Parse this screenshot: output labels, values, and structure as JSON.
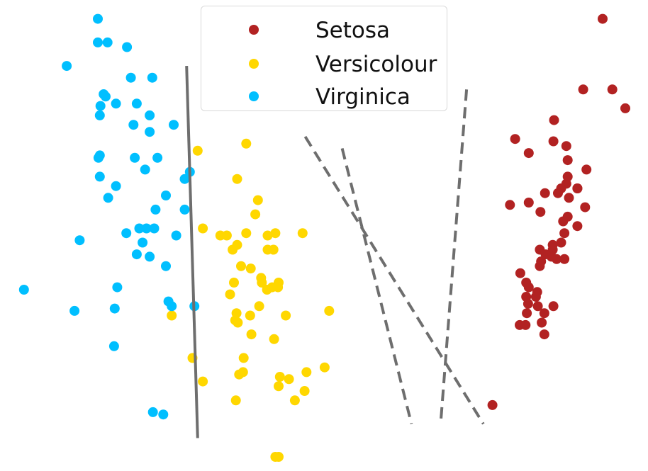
{
  "chart_data": {
    "type": "scatter",
    "title": "",
    "xlabel": "",
    "ylabel": "",
    "axes_visible": false,
    "grid": false,
    "legend_position": "top-center",
    "xlim": [
      0,
      100
    ],
    "ylim": [
      0,
      100
    ],
    "series": [
      {
        "name": "Setosa",
        "color": "#b22222",
        "points": [
          [
            93,
            96
          ],
          [
            90,
            81
          ],
          [
            94.5,
            81
          ],
          [
            96.5,
            77
          ],
          [
            85.5,
            74.5
          ],
          [
            79.5,
            70.5
          ],
          [
            85.4,
            70
          ],
          [
            87.4,
            69
          ],
          [
            81.6,
            67.5
          ],
          [
            87.6,
            66
          ],
          [
            90.5,
            64
          ],
          [
            87.6,
            62.5
          ],
          [
            87.4,
            61
          ],
          [
            86.6,
            60
          ],
          [
            89.1,
            60
          ],
          [
            86.1,
            59
          ],
          [
            89.1,
            60
          ],
          [
            84.1,
            59
          ],
          [
            87.8,
            58
          ],
          [
            81.6,
            57
          ],
          [
            78.7,
            56.5
          ],
          [
            90.3,
            56
          ],
          [
            83.4,
            55
          ],
          [
            87.6,
            54
          ],
          [
            86.9,
            53
          ],
          [
            89.1,
            52
          ],
          [
            87.1,
            50.5
          ],
          [
            86.6,
            48.5
          ],
          [
            85.3,
            48
          ],
          [
            83.3,
            47
          ],
          [
            85.3,
            47
          ],
          [
            84.2,
            46
          ],
          [
            85.1,
            45.5
          ],
          [
            85.9,
            45
          ],
          [
            87.1,
            45
          ],
          [
            83.5,
            44.5
          ],
          [
            83.3,
            43.5
          ],
          [
            80.3,
            42
          ],
          [
            81.2,
            40
          ],
          [
            81.6,
            39
          ],
          [
            82.9,
            38
          ],
          [
            81.2,
            37
          ],
          [
            82.7,
            37
          ],
          [
            81.5,
            35.5
          ],
          [
            85.4,
            35
          ],
          [
            83,
            35
          ],
          [
            81.3,
            33.5
          ],
          [
            84,
            33.5
          ],
          [
            83.6,
            31.5
          ],
          [
            80.2,
            31
          ],
          [
            81.1,
            31
          ],
          [
            84,
            29
          ],
          [
            76,
            14
          ]
        ]
      },
      {
        "name": "Versicolour",
        "color": "#ffd700",
        "points": [
          [
            30.5,
            68
          ],
          [
            38,
            69.5
          ],
          [
            36.6,
            62
          ],
          [
            39.8,
            57.5
          ],
          [
            39.4,
            54.5
          ],
          [
            31.3,
            51.5
          ],
          [
            34,
            50
          ],
          [
            35,
            50
          ],
          [
            38,
            50.5
          ],
          [
            41.3,
            50
          ],
          [
            42.5,
            50.5
          ],
          [
            46.7,
            50.5
          ],
          [
            36.6,
            48
          ],
          [
            35.9,
            47
          ],
          [
            41.3,
            47
          ],
          [
            42.2,
            47
          ],
          [
            37.2,
            43.5
          ],
          [
            38.7,
            43
          ],
          [
            40.3,
            41
          ],
          [
            36.1,
            40
          ],
          [
            40.4,
            40
          ],
          [
            43,
            40
          ],
          [
            42,
            39
          ],
          [
            41.2,
            38.5
          ],
          [
            42.9,
            39
          ],
          [
            35.5,
            37.5
          ],
          [
            40,
            35
          ],
          [
            36.5,
            33.5
          ],
          [
            38.6,
            33
          ],
          [
            44.1,
            33
          ],
          [
            36.3,
            32
          ],
          [
            36.7,
            31.5
          ],
          [
            50.8,
            34
          ],
          [
            38.8,
            29
          ],
          [
            42.3,
            28
          ],
          [
            26.5,
            33
          ],
          [
            29.7,
            24
          ],
          [
            37.6,
            24
          ],
          [
            50.1,
            22
          ],
          [
            36.9,
            20.5
          ],
          [
            37.5,
            21
          ],
          [
            43.2,
            20
          ],
          [
            44.6,
            19.5
          ],
          [
            47.3,
            21
          ],
          [
            31.3,
            19
          ],
          [
            43,
            18
          ],
          [
            47,
            17
          ],
          [
            36.4,
            15
          ],
          [
            45.5,
            15
          ],
          [
            42.5,
            3
          ],
          [
            43,
            3
          ]
        ]
      },
      {
        "name": "Virginica",
        "color": "#00bfff",
        "points": [
          [
            15.1,
            96
          ],
          [
            15.1,
            91
          ],
          [
            16.6,
            91
          ],
          [
            19.6,
            90
          ],
          [
            10.3,
            86
          ],
          [
            20.2,
            83.5
          ],
          [
            23.5,
            83.5
          ],
          [
            16,
            80
          ],
          [
            16.3,
            79.5
          ],
          [
            15.5,
            77.5
          ],
          [
            17.9,
            78
          ],
          [
            21.1,
            78
          ],
          [
            15.4,
            75.5
          ],
          [
            23.1,
            75.5
          ],
          [
            20.6,
            73.5
          ],
          [
            26.8,
            73.5
          ],
          [
            23.1,
            72
          ],
          [
            15.2,
            66.5
          ],
          [
            15.4,
            67
          ],
          [
            20.8,
            66.5
          ],
          [
            24.3,
            66.5
          ],
          [
            22.4,
            64
          ],
          [
            29.3,
            63.5
          ],
          [
            15.4,
            62.5
          ],
          [
            28.5,
            62
          ],
          [
            17.9,
            60.5
          ],
          [
            16.7,
            58
          ],
          [
            25.6,
            58.5
          ],
          [
            24,
            55.5
          ],
          [
            28.5,
            55.5
          ],
          [
            21.5,
            51.5
          ],
          [
            22.6,
            51.5
          ],
          [
            23.8,
            51.5
          ],
          [
            19.5,
            50.5
          ],
          [
            27.2,
            50
          ],
          [
            12.3,
            49
          ],
          [
            22,
            48.5
          ],
          [
            21.1,
            46
          ],
          [
            23.1,
            45.5
          ],
          [
            25.6,
            43.5
          ],
          [
            18.1,
            39
          ],
          [
            3.7,
            38.5
          ],
          [
            26,
            36
          ],
          [
            26.5,
            35
          ],
          [
            30,
            35
          ],
          [
            17.7,
            34.5
          ],
          [
            11.5,
            34
          ],
          [
            17.6,
            26.5
          ],
          [
            23.6,
            12.5
          ],
          [
            25.2,
            12
          ]
        ]
      }
    ],
    "reference_lines": [
      {
        "style": "solid",
        "color": "#6e6e6e",
        "from": [
          28.8,
          86
        ],
        "to": [
          30.5,
          7
        ]
      },
      {
        "style": "dashed",
        "color": "#6e6e6e",
        "from": [
          47.1,
          71
        ],
        "to": [
          74.6,
          10
        ]
      },
      {
        "style": "dashed",
        "color": "#6e6e6e",
        "from": [
          52.8,
          68.5
        ],
        "to": [
          63.5,
          10
        ]
      },
      {
        "style": "dashed",
        "color": "#6e6e6e",
        "from": [
          72,
          81
        ],
        "to": [
          68,
          10
        ]
      }
    ]
  }
}
